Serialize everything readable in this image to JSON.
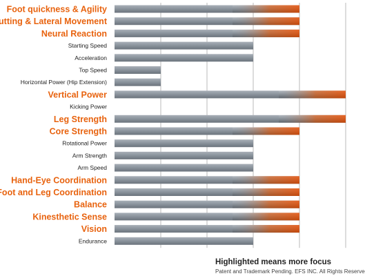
{
  "chart_data": {
    "type": "bar",
    "orientation": "horizontal",
    "grid": true,
    "xlim": [
      0,
      5
    ],
    "colors": {
      "bar": "#8a939c",
      "bar_highlight_end": "#e2530d",
      "highlight_label": "#e8630f",
      "label": "#222222",
      "grid": "#b9b9b9"
    },
    "categories": [
      "Foot quickness & Agility",
      "Cutting & Lateral Movement",
      "Neural Reaction",
      "Starting Speed",
      "Acceleration",
      "Top Speed",
      "Horizontal Power (Hip Extension)",
      "Vertical Power",
      "Kicking Power",
      "Leg Strength",
      "Core Strength",
      "Rotational Power",
      "Arm Strength",
      "Arm Speed",
      "Hand-Eye Coordination",
      "Foot and Leg Coordination",
      "Balance",
      "Kinesthetic Sense",
      "Vision",
      "Endurance"
    ],
    "values": [
      4,
      4,
      4,
      3,
      3,
      1,
      1,
      5,
      0,
      5,
      4,
      3,
      3,
      3,
      4,
      4,
      4,
      4,
      4,
      3
    ],
    "highlighted": [
      true,
      true,
      true,
      false,
      false,
      false,
      false,
      true,
      false,
      true,
      true,
      false,
      false,
      false,
      true,
      true,
      true,
      true,
      true,
      false
    ]
  },
  "footer": {
    "legend_note": "Highlighted means more focus",
    "copyright": "Patent and Trademark Pending. EFS INC. All Rights Reserved."
  }
}
